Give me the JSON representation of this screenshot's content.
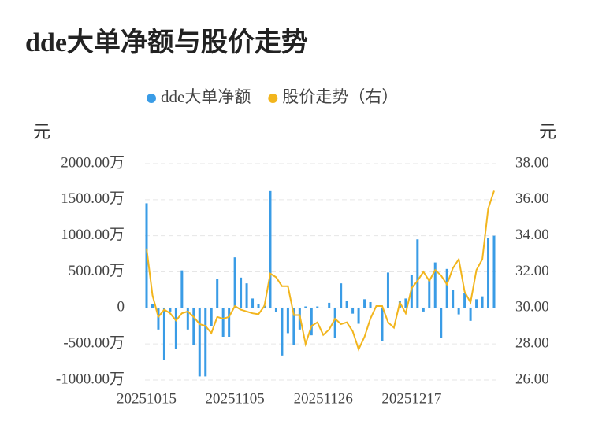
{
  "chart_data": {
    "type": "bar-line",
    "title": "dde大单净额与股价走势",
    "left_axis_label": "元",
    "right_axis_label": "元",
    "categories": [
      "20251015",
      null,
      null,
      null,
      null,
      null,
      null,
      null,
      null,
      null,
      null,
      null,
      null,
      null,
      null,
      "20251105",
      null,
      null,
      null,
      null,
      null,
      null,
      null,
      null,
      null,
      null,
      null,
      null,
      null,
      null,
      "20251126",
      null,
      null,
      null,
      null,
      null,
      null,
      null,
      null,
      null,
      null,
      null,
      null,
      null,
      null,
      "20251217",
      null,
      null,
      null,
      null,
      null,
      null,
      null,
      null,
      null,
      null,
      null,
      null,
      null,
      null
    ],
    "series": [
      {
        "name": "dde大单净额",
        "type": "bar",
        "color": "#3a9ce6",
        "values": [
          1450,
          50,
          -300,
          -720,
          -50,
          -570,
          520,
          -300,
          -520,
          -950,
          -950,
          -250,
          400,
          -400,
          -400,
          700,
          420,
          340,
          130,
          50,
          30,
          1620,
          -60,
          -660,
          -350,
          -520,
          -300,
          20,
          -380,
          20,
          0,
          70,
          -420,
          340,
          100,
          -80,
          -220,
          120,
          80,
          0,
          -460,
          490,
          0,
          100,
          130,
          460,
          950,
          -50,
          400,
          630,
          -420,
          540,
          250,
          -90,
          200,
          -180,
          120,
          160,
          970,
          1000
        ]
      },
      {
        "name": "股价走势（右）",
        "type": "line",
        "axis": "y2",
        "color": "#f2b51d",
        "values": [
          33.3,
          30.7,
          29.5,
          29.9,
          29.7,
          29.3,
          29.7,
          29.8,
          29.5,
          29.1,
          29.0,
          28.6,
          29.5,
          29.4,
          29.5,
          30.1,
          29.9,
          29.8,
          29.7,
          29.65,
          30.1,
          31.9,
          31.7,
          31.2,
          31.2,
          29.6,
          29.6,
          28.0,
          29.0,
          29.2,
          28.5,
          28.8,
          29.4,
          29.1,
          29.2,
          28.7,
          27.7,
          28.4,
          29.4,
          30.1,
          30.1,
          29.2,
          28.9,
          30.3,
          29.7,
          31.1,
          31.5,
          32.0,
          31.5,
          32.1,
          31.8,
          31.3,
          32.2,
          32.7,
          30.9,
          30.3,
          32.1,
          32.7,
          35.5,
          36.5
        ]
      }
    ],
    "ylim": [
      -1000,
      2000
    ],
    "yticks": [
      {
        "value": 2000,
        "label": "2000.00万"
      },
      {
        "value": 1500,
        "label": "1500.00万"
      },
      {
        "value": 1000,
        "label": "1000.00万"
      },
      {
        "value": 500,
        "label": "500.00万"
      },
      0,
      {
        "value": -500,
        "label": "-500.00万"
      },
      {
        "value": -1000,
        "label": "-1000.00万"
      }
    ],
    "y2lim": [
      26,
      38
    ],
    "y2ticks": [
      {
        "value": 38,
        "label": "38.00"
      },
      {
        "value": 36,
        "label": "36.00"
      },
      {
        "value": 34,
        "label": "34.00"
      },
      {
        "value": 32,
        "label": "32.00"
      },
      {
        "value": 30,
        "label": "30.00"
      },
      {
        "value": 28,
        "label": "28.00"
      },
      {
        "value": 26,
        "label": "26.00"
      }
    ],
    "grid": true
  }
}
